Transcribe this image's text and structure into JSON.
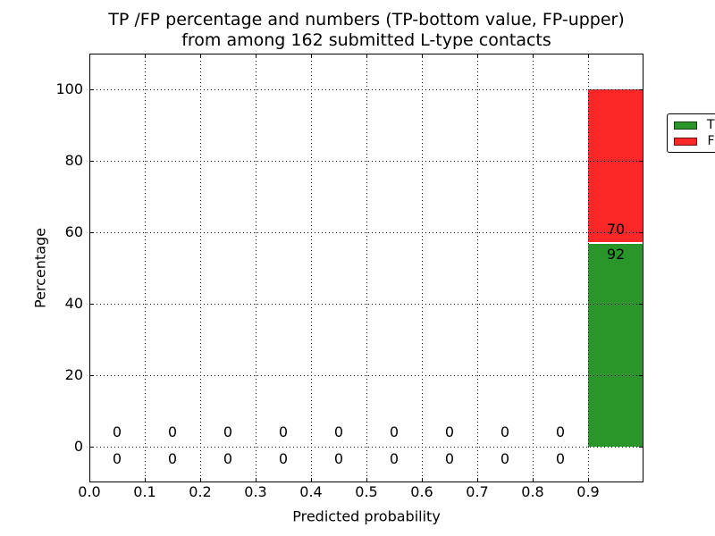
{
  "figure": {
    "title_line1": "TP /FP percentage and numbers (TP-bottom value, FP-upper)",
    "title_line2": "from among 162 submitted L-type contacts"
  },
  "chart_data": {
    "type": "bar",
    "stacked": true,
    "title": "TP /FP percentage and numbers (TP-bottom value, FP-upper)\nfrom among 162 submitted L-type contacts",
    "xlabel": "Predicted probability",
    "ylabel": "Percentage",
    "xlim": [
      0.0,
      1.0
    ],
    "ylim": [
      -10,
      110
    ],
    "grid": "dotted",
    "legend_position": "upper right",
    "x_tick_labels": [
      "0.0",
      "0.1",
      "0.2",
      "0.3",
      "0.4",
      "0.5",
      "0.6",
      "0.7",
      "0.8",
      "0.9"
    ],
    "y_tick_values": [
      0,
      20,
      40,
      60,
      80,
      100
    ],
    "bin_centers": [
      0.05,
      0.15,
      0.25,
      0.35,
      0.45,
      0.55,
      0.65,
      0.75,
      0.85,
      0.95
    ],
    "bin_width": 0.1,
    "total_contacts": 162,
    "series": [
      {
        "name": "TP",
        "color": "#2a962a",
        "counts": [
          0,
          0,
          0,
          0,
          0,
          0,
          0,
          0,
          0,
          92
        ]
      },
      {
        "name": "FP",
        "color": "#fc2828",
        "counts": [
          0,
          0,
          0,
          0,
          0,
          0,
          0,
          0,
          0,
          70
        ]
      }
    ],
    "bar_value_labels": {
      "tp_bottom": "92",
      "fp_upper": "70"
    }
  }
}
